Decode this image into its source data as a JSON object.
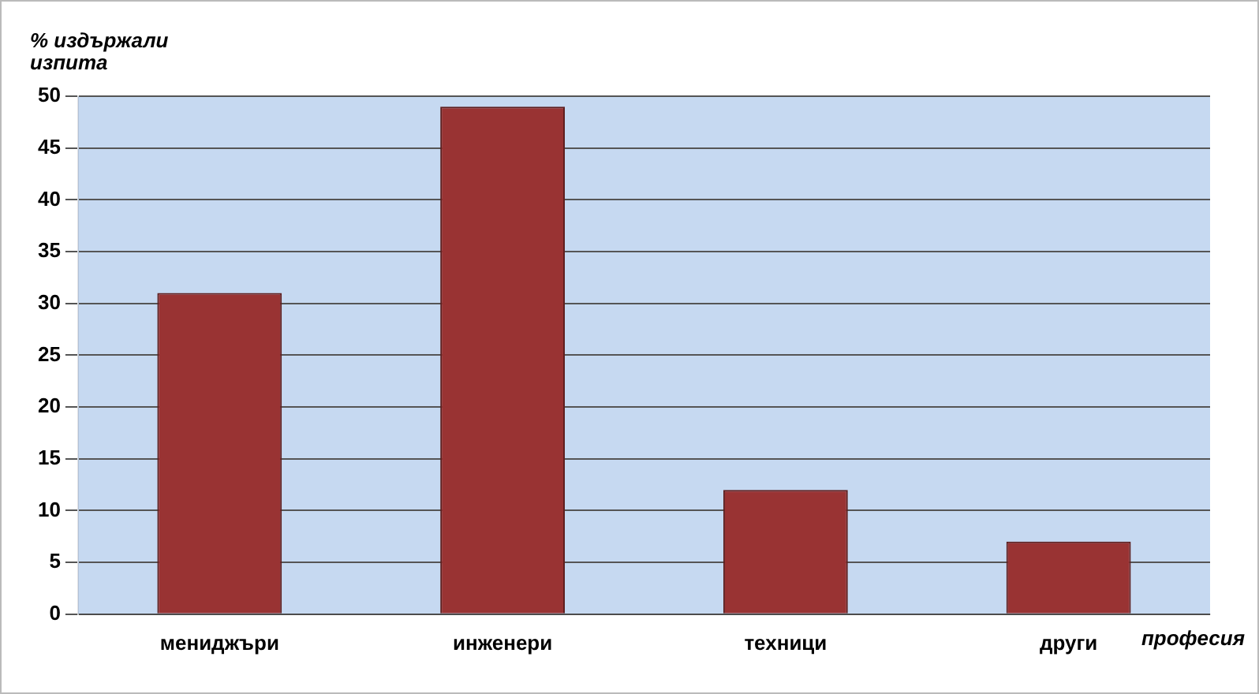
{
  "chart_data": {
    "type": "bar",
    "ylabel": "% издържали изпита",
    "xlabel": "професия",
    "categories": [
      "мениджъри",
      "инженери",
      "техници",
      "други"
    ],
    "values": [
      31,
      49,
      12,
      7
    ],
    "color": "#993333",
    "ylim": [
      0,
      50
    ],
    "yticks": [
      0,
      5,
      10,
      15,
      20,
      25,
      30,
      35,
      40,
      45,
      50
    ],
    "grid": "y",
    "legend": false
  }
}
